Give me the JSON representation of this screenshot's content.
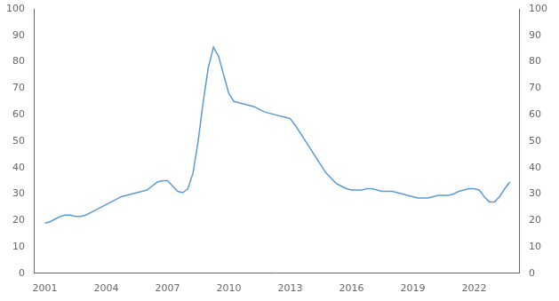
{
  "chart_data": {
    "type": "line",
    "color": "#5B9BD5",
    "grid": false,
    "x": [
      2001,
      2001.25,
      2001.5,
      2001.75,
      2002,
      2002.25,
      2002.5,
      2002.75,
      2003,
      2003.25,
      2003.5,
      2003.75,
      2004,
      2004.25,
      2004.5,
      2004.75,
      2005,
      2005.25,
      2005.5,
      2005.75,
      2006,
      2006.25,
      2006.5,
      2006.75,
      2007,
      2007.25,
      2007.5,
      2007.75,
      2008,
      2008.25,
      2008.5,
      2008.75,
      2009,
      2009.25,
      2009.5,
      2009.75,
      2010,
      2010.25,
      2010.5,
      2010.75,
      2011,
      2011.25,
      2011.5,
      2011.75,
      2012,
      2012.25,
      2012.5,
      2012.75,
      2013,
      2013.25,
      2013.5,
      2013.75,
      2014,
      2014.25,
      2014.5,
      2014.75,
      2015,
      2015.25,
      2015.5,
      2015.75,
      2016,
      2016.25,
      2016.5,
      2016.75,
      2017,
      2017.25,
      2017.5,
      2017.75,
      2018,
      2018.25,
      2018.5,
      2018.75,
      2019,
      2019.25,
      2019.5,
      2019.75,
      2020,
      2020.25,
      2020.5,
      2020.75,
      2021,
      2021.25,
      2021.5,
      2021.75,
      2022,
      2022.25,
      2022.5,
      2022.75,
      2023,
      2023.25,
      2023.5,
      2023.75
    ],
    "values": [
      19,
      19.5,
      20.5,
      21.5,
      22,
      22,
      21.5,
      21.5,
      22,
      23,
      24,
      25,
      26,
      27,
      28,
      29,
      29.5,
      30,
      30.5,
      31,
      31.5,
      33,
      34.5,
      35,
      35,
      33,
      31,
      30.5,
      32,
      38,
      50,
      65,
      78,
      85.5,
      82,
      75,
      68,
      65,
      64.5,
      64,
      63.5,
      63,
      62,
      61,
      60.5,
      60,
      59.5,
      59,
      58.5,
      56,
      53,
      50,
      47,
      44,
      41,
      38,
      36,
      34,
      33,
      32,
      31.5,
      31.5,
      31.5,
      32,
      32,
      31.5,
      31,
      31,
      31,
      30.5,
      30,
      29.5,
      29,
      28.5,
      28.5,
      28.5,
      29,
      29.5,
      29.5,
      29.5,
      30,
      31,
      31.5,
      32,
      32,
      31.5,
      29,
      27,
      27,
      29,
      32,
      34.5
    ],
    "xlim": [
      2000.5,
      2024.2
    ],
    "xticks": [
      2001,
      2004,
      2007,
      2010,
      2013,
      2016,
      2019,
      2022
    ],
    "ylim": [
      0,
      100
    ],
    "yticks": [
      0,
      10,
      20,
      30,
      40,
      50,
      60,
      70,
      80,
      90,
      100
    ],
    "y2lim": [
      0,
      100
    ],
    "y2ticks": [
      0,
      10,
      20,
      30,
      40,
      50,
      60,
      70,
      80,
      90,
      100
    ]
  }
}
